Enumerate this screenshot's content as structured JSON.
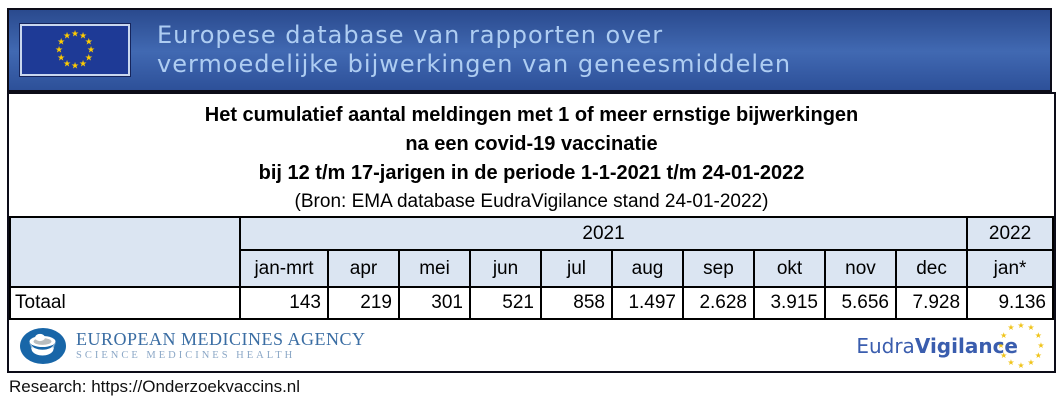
{
  "banner": {
    "line1": "Europese database van rapporten over",
    "line2": "vermoedelijke bijwerkingen van geneesmiddelen",
    "background_color": "#3f67b0",
    "text_color": "#aecdf2",
    "flag_star_color": "#ffcc00",
    "flag_blue": "#1e3a96"
  },
  "title": {
    "line1": "Het cumulatief aantal meldingen met 1 of meer ernstige bijwerkingen",
    "line2": "na een covid-19 vaccinatie",
    "line3": "bij 12 t/m 17-jarigen in de periode 1-1-2021 t/m 24-01-2022",
    "source": "(Bron: EMA database EudraVigilance stand 24-01-2022)"
  },
  "table": {
    "header_bg": "#dbe5f2",
    "year_2021": "2021",
    "year_2022": "2022",
    "columns": [
      "jan-mrt",
      "apr",
      "mei",
      "jun",
      "jul",
      "aug",
      "sep",
      "okt",
      "nov",
      "dec",
      "jan*"
    ],
    "rows": [
      {
        "label": "Totaal",
        "values": [
          "143",
          "219",
          "301",
          "521",
          "858",
          "1.497",
          "2.628",
          "3.915",
          "5.656",
          "7.928",
          "9.136"
        ]
      }
    ]
  },
  "chart_data": {
    "type": "table",
    "title": "Het cumulatief aantal meldingen met 1 of meer ernstige bijwerkingen na een covid-19 vaccinatie bij 12 t/m 17-jarigen in de periode 1-1-2021 t/m 24-01-2022",
    "source": "(Bron: EMA database EudraVigilance stand 24-01-2022)",
    "year_groups": [
      {
        "label": "2021",
        "columns": [
          "jan-mrt",
          "apr",
          "mei",
          "jun",
          "jul",
          "aug",
          "sep",
          "okt",
          "nov",
          "dec"
        ]
      },
      {
        "label": "2022",
        "columns": [
          "jan*"
        ]
      }
    ],
    "categories": [
      "jan-mrt",
      "apr",
      "mei",
      "jun",
      "jul",
      "aug",
      "sep",
      "okt",
      "nov",
      "dec",
      "jan*"
    ],
    "series": [
      {
        "name": "Totaal",
        "values": [
          143,
          219,
          301,
          521,
          858,
          1497,
          2628,
          3915,
          5656,
          7928,
          9136
        ]
      }
    ]
  },
  "footer": {
    "ema_name": "EUROPEAN MEDICINES AGENCY",
    "ema_tagline": "SCIENCE  MEDICINES  HEALTH",
    "ema_blue": "#1866a8",
    "eudra_part1": "Eudra",
    "eudra_part2": "Vigilance",
    "eudra_star_color": "#f0c41b"
  },
  "bottom_note": "Research: https://Onderzoekvaccins.nl"
}
